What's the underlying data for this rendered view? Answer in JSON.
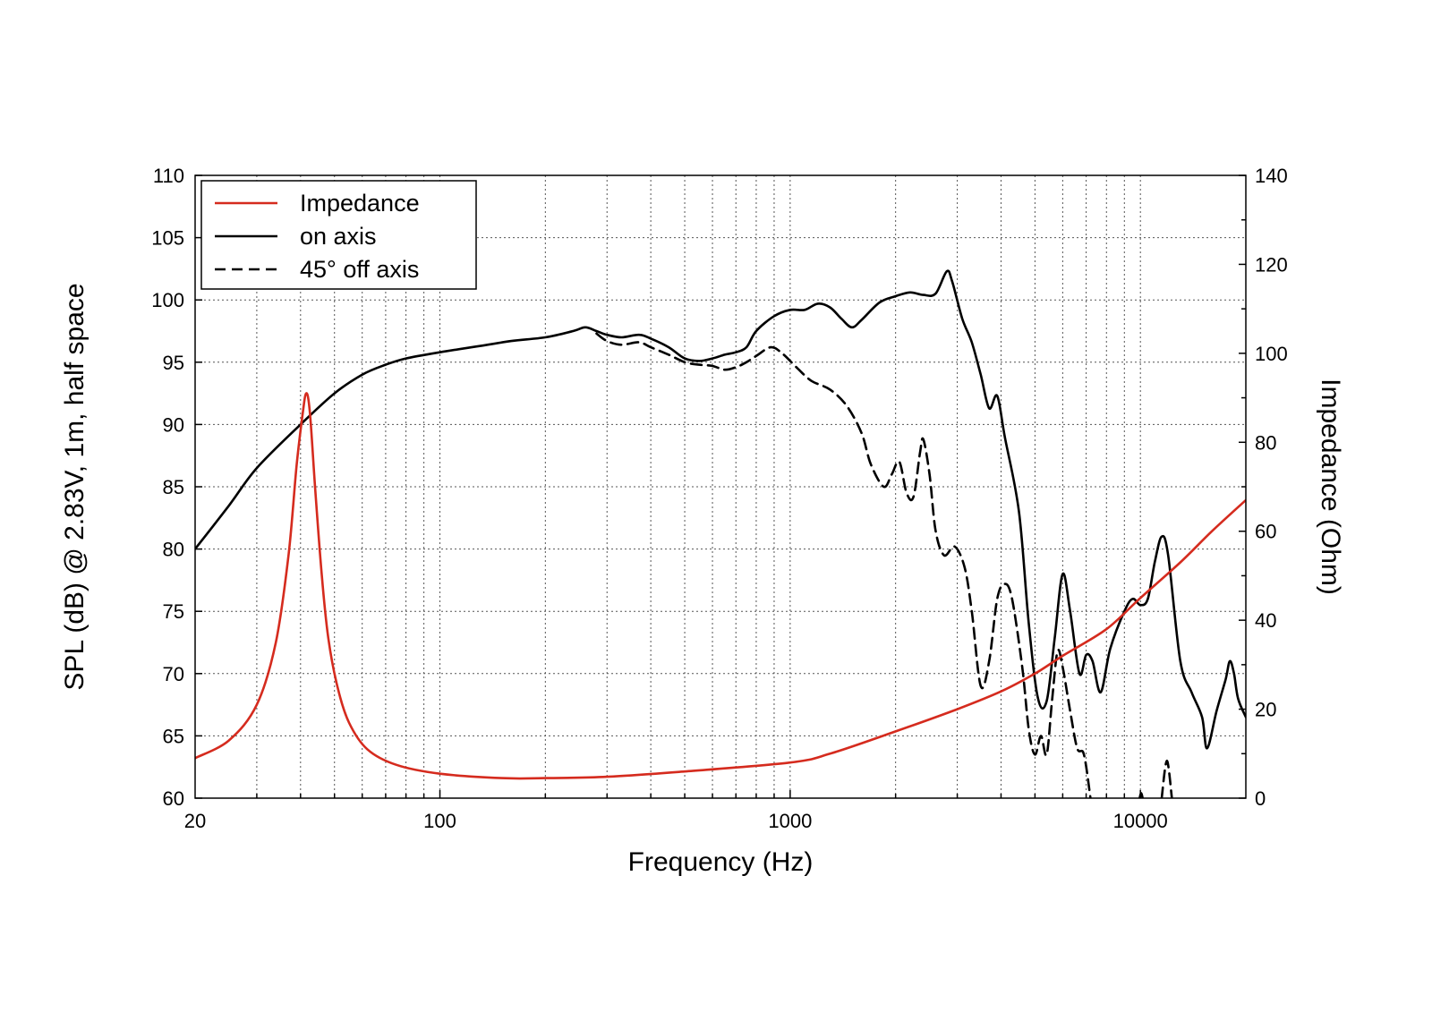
{
  "colors": {
    "impedance": "#d52b1e",
    "on_axis": "#000000",
    "off_axis": "#000000",
    "grid": "#555555"
  },
  "chart_data": {
    "type": "line",
    "title": "",
    "xlabel": "Frequency (Hz)",
    "ylabel": "SPL (dB) @ 2.83V, 1m, half space",
    "y2label": "Impedance (Ohm)",
    "xscale": "log",
    "xlim": [
      20,
      20000
    ],
    "ylim": [
      60,
      110
    ],
    "y2lim": [
      0,
      140
    ],
    "grid": true,
    "legend_position": "top-left",
    "x_ticks": [
      {
        "value": 20,
        "label": "20"
      },
      {
        "value": 100,
        "label": "100"
      },
      {
        "value": 1000,
        "label": "1000"
      },
      {
        "value": 10000,
        "label": "10000"
      }
    ],
    "y_ticks": [
      {
        "value": 60,
        "label": "60"
      },
      {
        "value": 65,
        "label": "65"
      },
      {
        "value": 70,
        "label": "70"
      },
      {
        "value": 75,
        "label": "75"
      },
      {
        "value": 80,
        "label": "80"
      },
      {
        "value": 85,
        "label": "85"
      },
      {
        "value": 90,
        "label": "90"
      },
      {
        "value": 95,
        "label": "95"
      },
      {
        "value": 100,
        "label": "100"
      },
      {
        "value": 105,
        "label": "105"
      },
      {
        "value": 110,
        "label": "110"
      }
    ],
    "y2_ticks": [
      {
        "value": 0,
        "label": "0"
      },
      {
        "value": 20,
        "label": "20"
      },
      {
        "value": 40,
        "label": "40"
      },
      {
        "value": 60,
        "label": "60"
      },
      {
        "value": 80,
        "label": "80"
      },
      {
        "value": 100,
        "label": "100"
      },
      {
        "value": 120,
        "label": "120"
      },
      {
        "value": 140,
        "label": "140"
      }
    ],
    "series": [
      {
        "name": "Impedance",
        "axis": "right",
        "color": "#d52b1e",
        "dash": "solid",
        "points": [
          [
            20,
            9
          ],
          [
            25,
            13
          ],
          [
            30,
            21
          ],
          [
            34,
            35
          ],
          [
            37,
            55
          ],
          [
            39,
            75
          ],
          [
            40.5,
            86
          ],
          [
            41.5,
            91
          ],
          [
            42.5,
            87
          ],
          [
            44,
            70
          ],
          [
            46,
            50
          ],
          [
            48,
            36
          ],
          [
            51,
            25
          ],
          [
            55,
            17
          ],
          [
            62,
            11
          ],
          [
            75,
            7.5
          ],
          [
            100,
            5.5
          ],
          [
            150,
            4.5
          ],
          [
            200,
            4.5
          ],
          [
            300,
            4.8
          ],
          [
            500,
            6
          ],
          [
            1000,
            8
          ],
          [
            1300,
            10
          ],
          [
            2000,
            15
          ],
          [
            3000,
            20
          ],
          [
            4000,
            24
          ],
          [
            5000,
            28
          ],
          [
            6000,
            32
          ],
          [
            8000,
            38
          ],
          [
            10000,
            45
          ],
          [
            13000,
            53
          ],
          [
            16000,
            60
          ],
          [
            20000,
            67
          ]
        ]
      },
      {
        "name": "on axis",
        "axis": "left",
        "color": "#000000",
        "dash": "solid",
        "points": [
          [
            20,
            80
          ],
          [
            25,
            83.5
          ],
          [
            30,
            86.5
          ],
          [
            40,
            90
          ],
          [
            50,
            92.5
          ],
          [
            60,
            94
          ],
          [
            70,
            94.8
          ],
          [
            80,
            95.3
          ],
          [
            100,
            95.8
          ],
          [
            130,
            96.3
          ],
          [
            160,
            96.7
          ],
          [
            200,
            97
          ],
          [
            240,
            97.5
          ],
          [
            260,
            97.8
          ],
          [
            280,
            97.5
          ],
          [
            300,
            97.2
          ],
          [
            330,
            97
          ],
          [
            370,
            97.2
          ],
          [
            400,
            96.9
          ],
          [
            450,
            96.2
          ],
          [
            500,
            95.3
          ],
          [
            550,
            95.1
          ],
          [
            600,
            95.3
          ],
          [
            650,
            95.6
          ],
          [
            700,
            95.8
          ],
          [
            750,
            96.2
          ],
          [
            800,
            97.5
          ],
          [
            900,
            98.7
          ],
          [
            1000,
            99.2
          ],
          [
            1100,
            99.2
          ],
          [
            1200,
            99.7
          ],
          [
            1300,
            99.4
          ],
          [
            1400,
            98.5
          ],
          [
            1500,
            97.8
          ],
          [
            1600,
            98.4
          ],
          [
            1800,
            99.8
          ],
          [
            2000,
            100.3
          ],
          [
            2200,
            100.6
          ],
          [
            2400,
            100.4
          ],
          [
            2600,
            100.5
          ],
          [
            2800,
            102.3
          ],
          [
            2900,
            101.5
          ],
          [
            3100,
            98.5
          ],
          [
            3300,
            96.6
          ],
          [
            3500,
            94
          ],
          [
            3700,
            91.3
          ],
          [
            3900,
            92.3
          ],
          [
            4100,
            89
          ],
          [
            4500,
            83
          ],
          [
            4800,
            74
          ],
          [
            5100,
            68
          ],
          [
            5400,
            67.8
          ],
          [
            5700,
            73
          ],
          [
            6000,
            78
          ],
          [
            6300,
            75
          ],
          [
            6700,
            70
          ],
          [
            7000,
            71.5
          ],
          [
            7300,
            71
          ],
          [
            7700,
            68.5
          ],
          [
            8200,
            72
          ],
          [
            9000,
            75
          ],
          [
            9500,
            76
          ],
          [
            10000,
            75.5
          ],
          [
            10500,
            76
          ],
          [
            11000,
            79
          ],
          [
            11500,
            81
          ],
          [
            12000,
            79.5
          ],
          [
            13000,
            71
          ],
          [
            14000,
            68.5
          ],
          [
            15000,
            66.5
          ],
          [
            15500,
            64
          ],
          [
            16500,
            67
          ],
          [
            17500,
            69.5
          ],
          [
            18000,
            71
          ],
          [
            18500,
            70
          ],
          [
            19000,
            68
          ],
          [
            20000,
            66.5
          ]
        ]
      },
      {
        "name": "45° off axis",
        "axis": "left",
        "color": "#000000",
        "dash": "dashed",
        "points": [
          [
            280,
            97.3
          ],
          [
            300,
            96.7
          ],
          [
            330,
            96.4
          ],
          [
            370,
            96.6
          ],
          [
            400,
            96.2
          ],
          [
            450,
            95.6
          ],
          [
            500,
            95
          ],
          [
            550,
            94.8
          ],
          [
            600,
            94.7
          ],
          [
            650,
            94.4
          ],
          [
            700,
            94.6
          ],
          [
            750,
            95
          ],
          [
            800,
            95.5
          ],
          [
            880,
            96.2
          ],
          [
            950,
            95.7
          ],
          [
            1050,
            94.5
          ],
          [
            1150,
            93.5
          ],
          [
            1300,
            92.8
          ],
          [
            1450,
            91.5
          ],
          [
            1600,
            89.3
          ],
          [
            1700,
            86.8
          ],
          [
            1850,
            85
          ],
          [
            1950,
            86
          ],
          [
            2050,
            87
          ],
          [
            2150,
            84.5
          ],
          [
            2250,
            84.2
          ],
          [
            2350,
            87.8
          ],
          [
            2400,
            88.8
          ],
          [
            2500,
            86
          ],
          [
            2600,
            81.5
          ],
          [
            2750,
            79.5
          ],
          [
            2950,
            80.2
          ],
          [
            3150,
            78.5
          ],
          [
            3300,
            75
          ],
          [
            3500,
            69
          ],
          [
            3700,
            71
          ],
          [
            3900,
            76
          ],
          [
            4100,
            77.2
          ],
          [
            4300,
            76
          ],
          [
            4600,
            70.5
          ],
          [
            4800,
            65.5
          ],
          [
            5000,
            63.5
          ],
          [
            5200,
            65
          ],
          [
            5400,
            63.5
          ],
          [
            5600,
            68
          ],
          [
            5800,
            71.8
          ],
          [
            6000,
            70.5
          ],
          [
            6300,
            67
          ],
          [
            6600,
            64
          ],
          [
            6900,
            63.5
          ],
          [
            7200,
            60
          ]
        ]
      },
      {
        "name": "45° off axis",
        "axis": "left",
        "color": "#000000",
        "dash": "dashed",
        "points": [
          [
            9950,
            60
          ],
          [
            10050,
            60.4
          ],
          [
            10150,
            60
          ]
        ]
      },
      {
        "name": "45° off axis",
        "axis": "left",
        "color": "#000000",
        "dash": "dashed",
        "points": [
          [
            11500,
            60
          ],
          [
            11900,
            63
          ],
          [
            12300,
            60
          ]
        ]
      }
    ],
    "legend": [
      {
        "label": "Impedance",
        "color": "#d52b1e",
        "dash": "solid"
      },
      {
        "label": "on axis",
        "color": "#000000",
        "dash": "solid"
      },
      {
        "label": "45° off axis",
        "color": "#000000",
        "dash": "dashed"
      }
    ]
  }
}
